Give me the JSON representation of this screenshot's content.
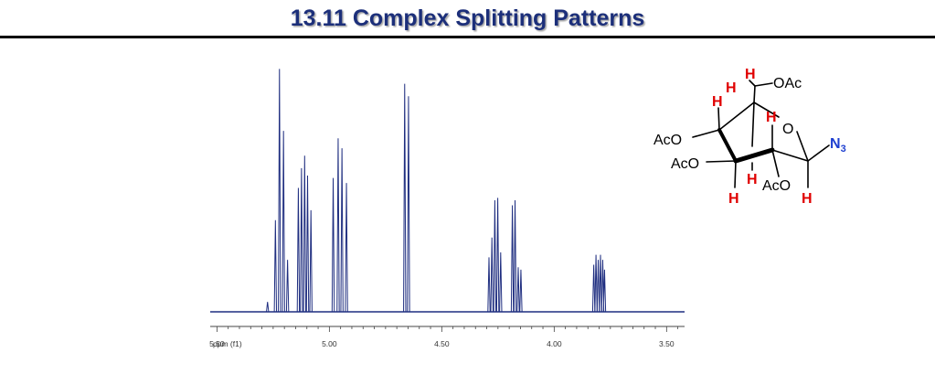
{
  "slide": {
    "title": "13.11 Complex Splitting Patterns"
  },
  "chart_data": {
    "type": "line",
    "title": "",
    "xlabel": "ppm (f1)",
    "ylabel": "",
    "x_reversed": true,
    "xlim": [
      5.53,
      3.42
    ],
    "ylim": [
      0,
      1
    ],
    "grid": false,
    "line_color": "#1f2e80",
    "ticks": [
      {
        "value": 5.5,
        "label": "5.50"
      },
      {
        "value": 5.0,
        "label": "5.00"
      },
      {
        "value": 4.5,
        "label": "4.50"
      },
      {
        "value": 4.0,
        "label": "4.00"
      },
      {
        "value": 3.5,
        "label": "3.50"
      }
    ],
    "peaks": [
      {
        "x": 5.275,
        "y": 0.04
      },
      {
        "x": 5.24,
        "y": 0.37
      },
      {
        "x": 5.222,
        "y": 0.98
      },
      {
        "x": 5.204,
        "y": 0.73
      },
      {
        "x": 5.186,
        "y": 0.21
      },
      {
        "x": 5.138,
        "y": 0.5
      },
      {
        "x": 5.124,
        "y": 0.58
      },
      {
        "x": 5.11,
        "y": 0.63
      },
      {
        "x": 5.097,
        "y": 0.55
      },
      {
        "x": 5.082,
        "y": 0.41
      },
      {
        "x": 4.983,
        "y": 0.54
      },
      {
        "x": 4.961,
        "y": 0.7
      },
      {
        "x": 4.944,
        "y": 0.66
      },
      {
        "x": 4.924,
        "y": 0.52
      },
      {
        "x": 4.665,
        "y": 0.92
      },
      {
        "x": 4.648,
        "y": 0.87
      },
      {
        "x": 4.29,
        "y": 0.22
      },
      {
        "x": 4.277,
        "y": 0.3
      },
      {
        "x": 4.264,
        "y": 0.45
      },
      {
        "x": 4.251,
        "y": 0.46
      },
      {
        "x": 4.238,
        "y": 0.24
      },
      {
        "x": 4.186,
        "y": 0.43
      },
      {
        "x": 4.174,
        "y": 0.45
      },
      {
        "x": 4.16,
        "y": 0.18
      },
      {
        "x": 4.148,
        "y": 0.17
      },
      {
        "x": 3.824,
        "y": 0.19
      },
      {
        "x": 3.814,
        "y": 0.23
      },
      {
        "x": 3.804,
        "y": 0.21
      },
      {
        "x": 3.794,
        "y": 0.23
      },
      {
        "x": 3.784,
        "y": 0.21
      },
      {
        "x": 3.776,
        "y": 0.17
      }
    ]
  },
  "structure": {
    "atom_color": "#e00000",
    "azide_color": "#1e3fd0",
    "labels": {
      "h_top1": "H",
      "h_top2": "H",
      "oac_top": "OAc",
      "h_left": "H",
      "h_mid": "H",
      "ring_o": "O",
      "aco_1": "AcO",
      "n3_n": "N",
      "n3_sub": "3",
      "aco_2": "AcO",
      "h_inner": "H",
      "aco_3": "AcO",
      "h_bottom_left": "H",
      "h_bottom_right": "H"
    }
  }
}
